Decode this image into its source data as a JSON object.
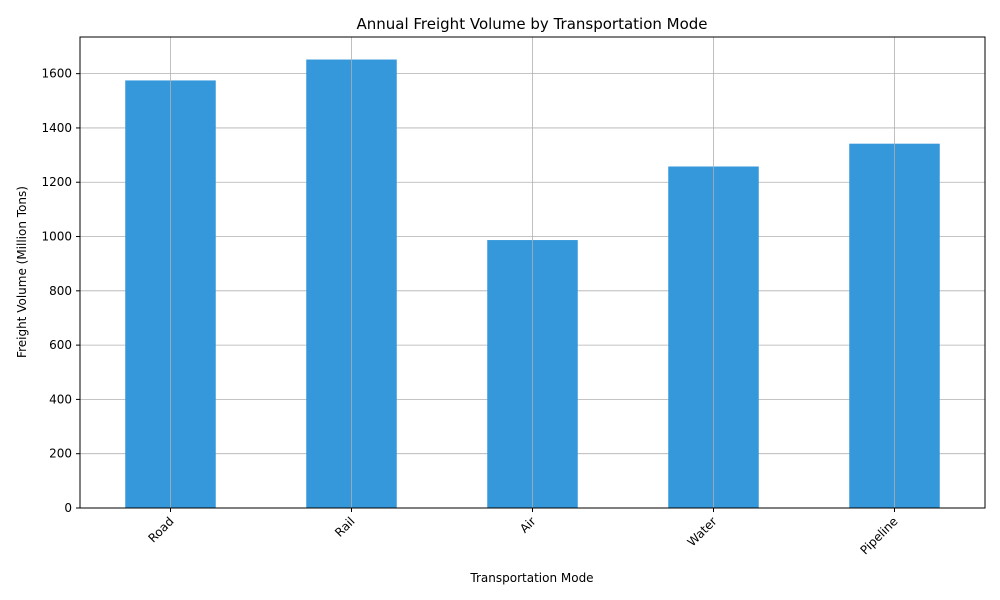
{
  "chart_data": {
    "type": "bar",
    "title": "Annual Freight Volume by Transportation Mode",
    "xlabel": "Transportation Mode",
    "ylabel": "Freight Volume (Million Tons)",
    "categories": [
      "Road",
      "Rail",
      "Air",
      "Water",
      "Pipeline"
    ],
    "values": [
      1575,
      1652,
      987,
      1258,
      1342
    ],
    "ylim": [
      0,
      1735
    ],
    "yticks": [
      0,
      200,
      400,
      600,
      800,
      1000,
      1200,
      1400,
      1600
    ],
    "grid": true,
    "bar_color": "#3498db"
  }
}
